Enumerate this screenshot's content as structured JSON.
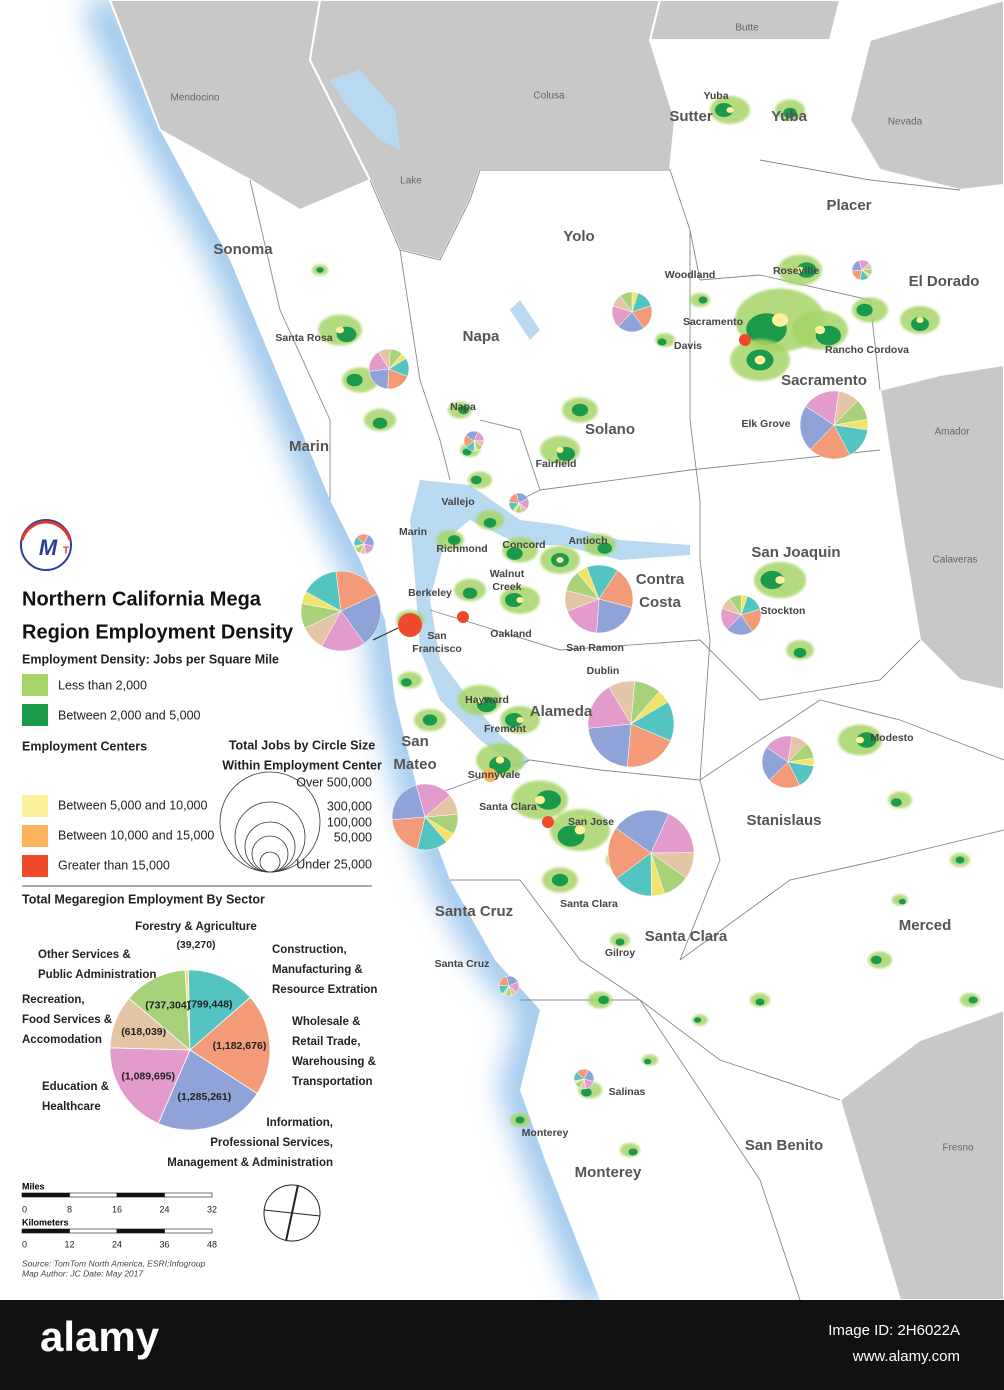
{
  "logo": {
    "main": "M",
    "sub": "T"
  },
  "title": [
    "Northern California Mega",
    "Region Employment Density"
  ],
  "outside_counties": [
    "Butte",
    "Mendocino",
    "Colusa",
    "Lake",
    "Nevada",
    "Amador",
    "Calaveras",
    "Fresno"
  ],
  "counties": [
    "Sutter",
    "Yuba",
    "Sonoma",
    "Yolo",
    "Placer",
    "El Dorado",
    "Napa",
    "Sacramento",
    "Solano",
    "Marin",
    "San Joaquin",
    "Contra\nCosta",
    "Alameda",
    "San\nMateo",
    "Stanislaus",
    "Santa Cruz",
    "Santa Clara",
    "Merced",
    "San Benito",
    "Monterey"
  ],
  "cities": [
    "Yuba",
    "Woodland",
    "Roseville",
    "Sacramento",
    "Davis",
    "Rancho Cordova",
    "Santa Rosa",
    "Elk Grove",
    "Napa",
    "Fairfield",
    "Vallejo",
    "Marin",
    "Richmond",
    "Concord",
    "Antioch",
    "Walnut\nCreek",
    "Berkeley",
    "San\nFrancisco",
    "Oakland",
    "Stockton",
    "San Ramon",
    "Dublin",
    "Hayward",
    "Fremont",
    "Modesto",
    "Sunnyvale",
    "Santa Clara",
    "San Jose",
    "Santa Clara",
    "Gilroy",
    "Santa Cruz",
    "Salinas",
    "Monterey"
  ],
  "legend": {
    "density_title": "Employment Density: Jobs per Square Mile",
    "density_items": [
      "Less than 2,000",
      "Between 2,000 and 5,000"
    ],
    "centers_title": "Employment Centers",
    "centers_items": [
      "Between 5,000 and 10,000",
      "Between 10,000 and 15,000",
      "Greater than 15,000"
    ],
    "size_title": [
      "Total Jobs by Circle Size",
      "Within Employment Center"
    ],
    "size_items": [
      "Over 500,000",
      "300,000",
      "100,000",
      "50,000",
      "Under 25,000"
    ]
  },
  "chart_data": {
    "type": "pie",
    "title": "Total Megaregion Employment By Sector",
    "categories": [
      "Forestry & Agriculture",
      "Construction,\nManufacturing &\nResource Extration",
      "Wholesale &\nRetail Trade,\nWarehousing &\nTransportation",
      "Information,\nProfessional Services,\nManagement & Administration",
      "Education &\nHealthcare",
      "Recreation,\nFood Services &\nAccomodation",
      "Other Services &\nPublic Administration"
    ],
    "values": [
      39270,
      799448,
      1182676,
      1285261,
      1089695,
      618039,
      737304
    ],
    "value_labels": [
      "(39,270)",
      "(799,448)",
      "(1,182,676)",
      "(1,285,261)",
      "(1,089,695)",
      "(618,039)",
      "(737,304)"
    ],
    "colors": [
      "#f2e36a",
      "#53c4bf",
      "#f39a78",
      "#8fa3d9",
      "#e39bcb",
      "#e4c6a6",
      "#a8d27a"
    ]
  },
  "scale": {
    "miles": {
      "label": "Miles",
      "ticks": [
        0,
        8,
        16,
        24,
        32
      ]
    },
    "kilometers": {
      "label": "Kilometers",
      "ticks": [
        0,
        12,
        24,
        36,
        48
      ]
    }
  },
  "source": [
    "Source: TomTom North America, ESRI;Infogroup",
    "Map Author: JC Date: May 2017"
  ],
  "footer": {
    "brand": "alamy",
    "image_id": "Image ID: 2H6022A",
    "url": "www.alamy.com"
  }
}
